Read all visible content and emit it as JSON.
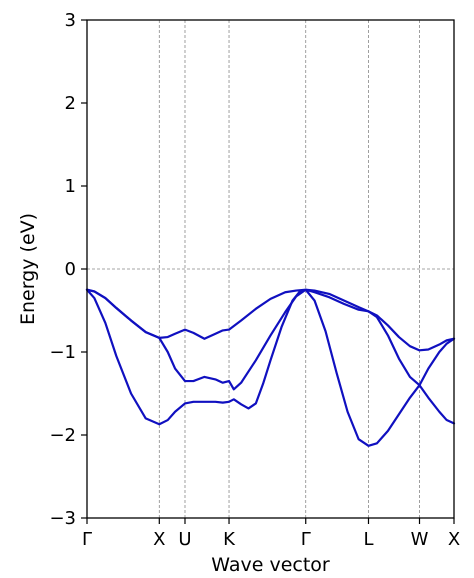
{
  "chart_data": {
    "type": "line",
    "title": "",
    "xlabel": "Wave vector",
    "ylabel": "Energy (eV)",
    "ylim": [
      -3,
      3
    ],
    "yticks": [
      -3,
      -2,
      -1,
      0,
      1,
      2,
      3
    ],
    "xlim": [
      0,
      1
    ],
    "kpoints": [
      {
        "label": "Γ",
        "x": 0.0
      },
      {
        "label": "X",
        "x": 0.197
      },
      {
        "label": "U",
        "x": 0.267
      },
      {
        "label": "K",
        "x": 0.387
      },
      {
        "label": "Γ",
        "x": 0.596
      },
      {
        "label": "L",
        "x": 0.767
      },
      {
        "label": "W",
        "x": 0.906
      },
      {
        "label": "X",
        "x": 1.0
      }
    ],
    "fermi_level": 0,
    "grid": "dashed vertical lines at k-points, dashed line at 0",
    "line_color": "#1010c0",
    "series": [
      {
        "x": [
          0.0,
          0.02,
          0.05,
          0.08,
          0.12,
          0.16,
          0.197,
          0.22,
          0.24,
          0.267,
          0.29,
          0.32,
          0.35,
          0.37,
          0.387,
          0.42,
          0.46,
          0.5,
          0.54,
          0.57,
          0.596,
          0.62,
          0.66,
          0.7,
          0.74,
          0.767,
          0.79,
          0.82,
          0.85,
          0.88,
          0.906,
          0.93,
          0.96,
          0.98,
          1.0
        ],
        "y": [
          -0.25,
          -0.27,
          -0.35,
          -0.47,
          -0.62,
          -0.76,
          -0.83,
          -0.82,
          -0.78,
          -0.73,
          -0.77,
          -0.84,
          -0.78,
          -0.74,
          -0.73,
          -0.62,
          -0.48,
          -0.36,
          -0.28,
          -0.26,
          -0.25,
          -0.28,
          -0.34,
          -0.42,
          -0.49,
          -0.51,
          -0.56,
          -0.68,
          -0.82,
          -0.93,
          -0.98,
          -0.97,
          -0.91,
          -0.86,
          -0.84
        ]
      },
      {
        "x": [
          0.0,
          0.02,
          0.05,
          0.08,
          0.12,
          0.16,
          0.197,
          0.22,
          0.24,
          0.267,
          0.29,
          0.32,
          0.35,
          0.37,
          0.387,
          0.4,
          0.42,
          0.46,
          0.5,
          0.54,
          0.57,
          0.596,
          0.62,
          0.66,
          0.7,
          0.74,
          0.767,
          0.79,
          0.82,
          0.85,
          0.88,
          0.906,
          0.93,
          0.96,
          0.98,
          1.0
        ],
        "y": [
          -0.25,
          -0.27,
          -0.35,
          -0.47,
          -0.62,
          -0.76,
          -0.83,
          -1.0,
          -1.2,
          -1.35,
          -1.35,
          -1.3,
          -1.33,
          -1.37,
          -1.35,
          -1.45,
          -1.37,
          -1.1,
          -0.8,
          -0.52,
          -0.33,
          -0.25,
          -0.26,
          -0.3,
          -0.38,
          -0.46,
          -0.51,
          -0.58,
          -0.8,
          -1.08,
          -1.3,
          -1.4,
          -1.55,
          -1.72,
          -1.82,
          -1.86
        ]
      },
      {
        "x": [
          0.0,
          0.02,
          0.05,
          0.08,
          0.12,
          0.16,
          0.197,
          0.22,
          0.24,
          0.267,
          0.29,
          0.32,
          0.35,
          0.37,
          0.387,
          0.4,
          0.42,
          0.44,
          0.46,
          0.48,
          0.5,
          0.53,
          0.56,
          0.58,
          0.596,
          0.62,
          0.65,
          0.68,
          0.71,
          0.74,
          0.767,
          0.79,
          0.82,
          0.85,
          0.88,
          0.906,
          0.93,
          0.96,
          0.98,
          1.0
        ],
        "y": [
          -0.25,
          -0.35,
          -0.65,
          -1.05,
          -1.5,
          -1.8,
          -1.87,
          -1.82,
          -1.72,
          -1.62,
          -1.6,
          -1.6,
          -1.6,
          -1.61,
          -1.6,
          -1.57,
          -1.63,
          -1.68,
          -1.62,
          -1.38,
          -1.1,
          -0.7,
          -0.38,
          -0.27,
          -0.25,
          -0.38,
          -0.75,
          -1.25,
          -1.72,
          -2.05,
          -2.13,
          -2.1,
          -1.95,
          -1.75,
          -1.55,
          -1.4,
          -1.2,
          -1.0,
          -0.9,
          -0.84
        ]
      }
    ]
  }
}
